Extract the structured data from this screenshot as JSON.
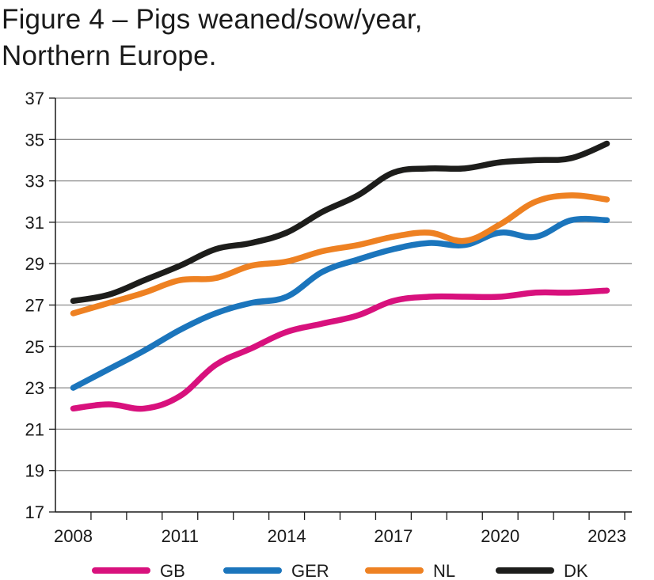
{
  "chart_data": {
    "type": "line",
    "title_line1": "Figure 4 – Pigs weaned/sow/year,",
    "title_line2": "Northern Europe.",
    "xlabel": "",
    "ylabel": "",
    "x": [
      2008,
      2009,
      2010,
      2011,
      2012,
      2013,
      2014,
      2015,
      2016,
      2017,
      2018,
      2019,
      2020,
      2021,
      2022,
      2023
    ],
    "x_tick_labels": [
      "2008",
      "2011",
      "2014",
      "2017",
      "2020",
      "2023"
    ],
    "y_ticks": [
      17,
      19,
      21,
      23,
      25,
      27,
      29,
      31,
      33,
      35,
      37
    ],
    "ylim": [
      17,
      37
    ],
    "xlim": [
      2007.5,
      2023.7
    ],
    "grid": "horizontal",
    "legend_position": "bottom",
    "series": [
      {
        "name": "GB",
        "color": "#d8117d",
        "values": [
          22.0,
          22.2,
          22.0,
          22.6,
          24.1,
          24.9,
          25.7,
          26.1,
          26.5,
          27.2,
          27.4,
          27.4,
          27.4,
          27.6,
          27.6,
          27.7
        ]
      },
      {
        "name": "GER",
        "color": "#1b75bc",
        "values": [
          23.0,
          23.9,
          24.8,
          25.8,
          26.6,
          27.1,
          27.4,
          28.6,
          29.2,
          29.7,
          30.0,
          29.9,
          30.5,
          30.3,
          31.1,
          31.1
        ]
      },
      {
        "name": "NL",
        "color": "#ee8122",
        "values": [
          26.6,
          27.1,
          27.6,
          28.2,
          28.3,
          28.9,
          29.1,
          29.6,
          29.9,
          30.3,
          30.5,
          30.1,
          30.9,
          32.0,
          32.3,
          32.1
        ]
      },
      {
        "name": "DK",
        "color": "#1d1d1b",
        "values": [
          27.2,
          27.5,
          28.2,
          28.9,
          29.7,
          30.0,
          30.5,
          31.5,
          32.3,
          33.4,
          33.6,
          33.6,
          33.9,
          34.0,
          34.1,
          34.8
        ]
      }
    ]
  }
}
